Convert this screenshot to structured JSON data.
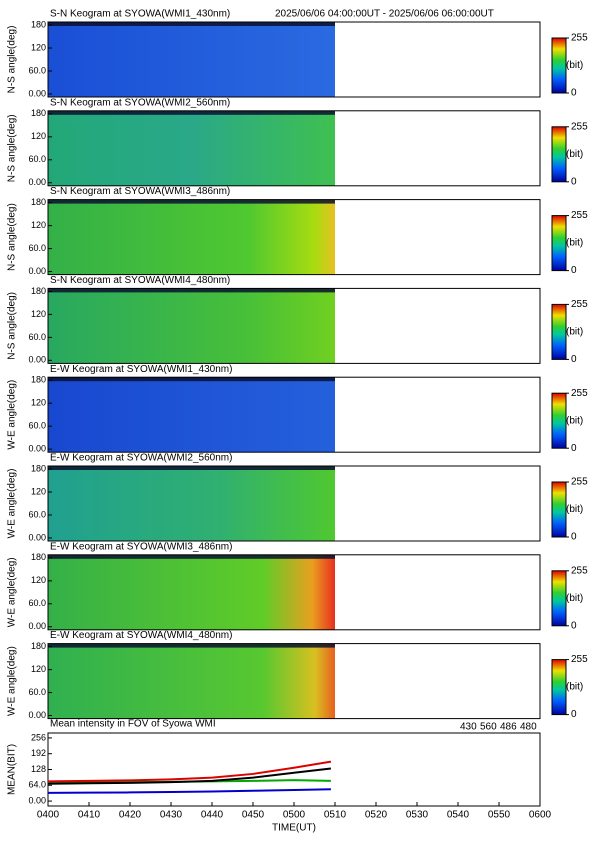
{
  "chart_data": [
    {
      "type": "keogram",
      "title": "S-N Keogram at SYOWA(WMI1_430nm)",
      "subtitle": "2025/06/06 04:00:00UT - 2025/06/06 06:00:00UT",
      "ylabel": "N-S angle(deg)",
      "ylim": [
        -8,
        188
      ],
      "yticks": [
        {
          "value": 0,
          "label": "0.00"
        },
        {
          "value": 60,
          "label": "60.0"
        },
        120,
        180
      ],
      "colorbar": {
        "lim": [
          0,
          255
        ],
        "ticks": [
          0,
          255
        ],
        "label": "(bit)"
      }
    },
    {
      "type": "keogram",
      "title": "S-N Keogram at SYOWA(WMI2_560nm)",
      "ylabel": "N-S angle(deg)",
      "ylim": [
        -8,
        188
      ],
      "yticks": [
        {
          "value": 0,
          "label": "0.00"
        },
        {
          "value": 60,
          "label": "60.0"
        },
        120,
        180
      ],
      "colorbar": {
        "lim": [
          0,
          255
        ],
        "ticks": [
          0,
          255
        ],
        "label": "(bit)"
      }
    },
    {
      "type": "keogram",
      "title": "S-N Keogram at SYOWA(WMI3_486nm)",
      "ylabel": "N-S angle(deg)",
      "ylim": [
        -8,
        188
      ],
      "yticks": [
        {
          "value": 0,
          "label": "0.00"
        },
        {
          "value": 60,
          "label": "60.0"
        },
        120,
        180
      ],
      "colorbar": {
        "lim": [
          0,
          255
        ],
        "ticks": [
          0,
          255
        ],
        "label": "(bit)"
      }
    },
    {
      "type": "keogram",
      "title": "S-N Keogram at SYOWA(WMI4_480nm)",
      "ylabel": "N-S angle(deg)",
      "ylim": [
        -8,
        188
      ],
      "yticks": [
        {
          "value": 0,
          "label": "0.00"
        },
        {
          "value": 60,
          "label": "60.0"
        },
        120,
        180
      ],
      "colorbar": {
        "lim": [
          0,
          255
        ],
        "ticks": [
          0,
          255
        ],
        "label": "(bit)"
      }
    },
    {
      "type": "keogram",
      "title": "E-W Keogram at SYOWA(WMI1_430nm)",
      "ylabel": "W-E angle(deg)",
      "ylim": [
        -8,
        188
      ],
      "yticks": [
        {
          "value": 0,
          "label": "0.00"
        },
        {
          "value": 60,
          "label": "60.0"
        },
        120,
        180
      ],
      "colorbar": {
        "lim": [
          0,
          255
        ],
        "ticks": [
          0,
          255
        ],
        "label": "(bit)"
      }
    },
    {
      "type": "keogram",
      "title": "E-W Keogram at SYOWA(WMI2_560nm)",
      "ylabel": "W-E angle(deg)",
      "ylim": [
        -8,
        188
      ],
      "yticks": [
        {
          "value": 0,
          "label": "0.00"
        },
        {
          "value": 60,
          "label": "60.0"
        },
        120,
        180
      ],
      "colorbar": {
        "lim": [
          0,
          255
        ],
        "ticks": [
          0,
          255
        ],
        "label": "(bit)"
      }
    },
    {
      "type": "keogram",
      "title": "E-W Keogram at SYOWA(WMI3_486nm)",
      "ylabel": "W-E angle(deg)",
      "ylim": [
        -8,
        188
      ],
      "yticks": [
        {
          "value": 0,
          "label": "0.00"
        },
        {
          "value": 60,
          "label": "60.0"
        },
        120,
        180
      ],
      "colorbar": {
        "lim": [
          0,
          255
        ],
        "ticks": [
          0,
          255
        ],
        "label": "(bit)"
      }
    },
    {
      "type": "keogram",
      "title": "E-W Keogram at SYOWA(WMI4_480nm)",
      "ylabel": "W-E angle(deg)",
      "ylim": [
        -8,
        188
      ],
      "yticks": [
        {
          "value": 0,
          "label": "0.00"
        },
        {
          "value": 60,
          "label": "60.0"
        },
        120,
        180
      ],
      "colorbar": {
        "lim": [
          0,
          255
        ],
        "ticks": [
          0,
          255
        ],
        "label": "(bit)"
      }
    },
    {
      "type": "line",
      "title": "Mean intensity in FOV of Syowa WMI",
      "ylabel": "MEAN(BIT)",
      "xlabel": "TIME(UT)",
      "xlim": [
        240,
        360
      ],
      "xticks": [
        {
          "value": 240,
          "label": "0400"
        },
        {
          "value": 250,
          "label": "0410"
        },
        {
          "value": 260,
          "label": "0420"
        },
        {
          "value": 270,
          "label": "0430"
        },
        {
          "value": 280,
          "label": "0440"
        },
        {
          "value": 290,
          "label": "0450"
        },
        {
          "value": 300,
          "label": "0500"
        },
        {
          "value": 310,
          "label": "0510"
        },
        {
          "value": 320,
          "label": "0520"
        },
        {
          "value": 330,
          "label": "0530"
        },
        {
          "value": 340,
          "label": "0540"
        },
        {
          "value": 350,
          "label": "0550"
        },
        {
          "value": 360,
          "label": "0600"
        }
      ],
      "ylim": [
        -20,
        276
      ],
      "yticks": [
        {
          "value": 0,
          "label": "0.00"
        },
        {
          "value": 64,
          "label": "64.0"
        },
        128,
        192,
        256
      ],
      "x": [
        240,
        250,
        260,
        270,
        280,
        290,
        300,
        309
      ],
      "series": [
        {
          "name": "430",
          "color": "#0000cc",
          "values": [
            33,
            34,
            35,
            37,
            39,
            42,
            45,
            48
          ]
        },
        {
          "name": "560",
          "color": "#00aa00",
          "values": [
            75,
            76,
            77,
            78,
            80,
            82,
            85,
            82
          ]
        },
        {
          "name": "486",
          "color": "#dd0000",
          "values": [
            80,
            82,
            84,
            88,
            95,
            110,
            135,
            160
          ]
        },
        {
          "name": "480",
          "color": "#000000",
          "values": [
            70,
            72,
            74,
            77,
            82,
            95,
            115,
            132
          ]
        }
      ]
    }
  ]
}
